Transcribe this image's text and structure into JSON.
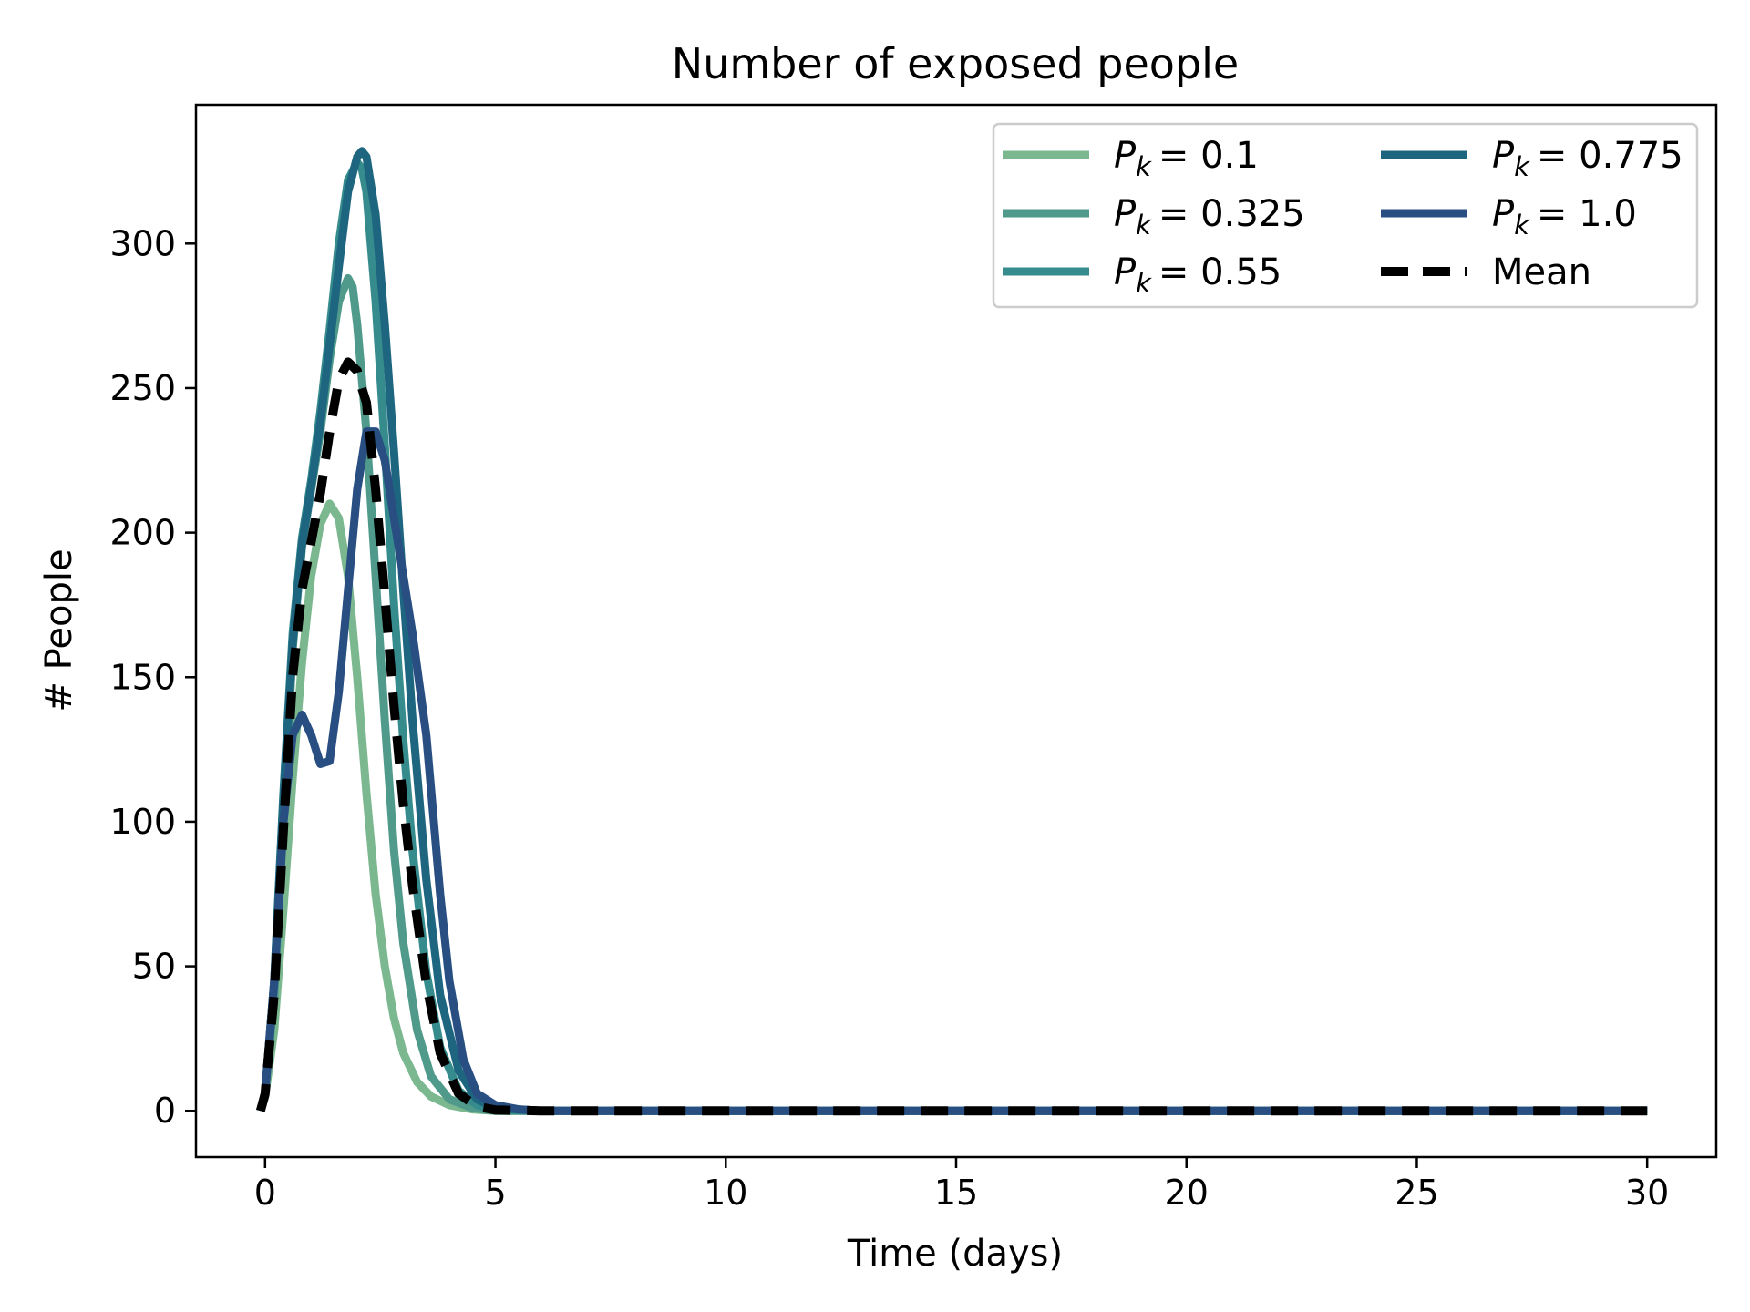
{
  "chart_data": {
    "type": "line",
    "title": "Number of exposed people",
    "xlabel": "Time (days)",
    "ylabel": "# People",
    "xlim": [
      -1.5,
      31.5
    ],
    "ylim": [
      -16,
      348
    ],
    "xticks": [
      0,
      5,
      10,
      15,
      20,
      25,
      30
    ],
    "yticks": [
      0,
      50,
      100,
      150,
      200,
      250,
      300
    ],
    "legend_position": "upper-right",
    "legend_columns": 2,
    "series": [
      {
        "name": "P_k = 0.1",
        "legend_var": "P",
        "legend_sub": "k",
        "legend_val": "= 0.1",
        "color": "#7bb88f",
        "dashed": false,
        "x": [
          -0.1,
          0,
          0.2,
          0.4,
          0.6,
          0.8,
          1.0,
          1.2,
          1.4,
          1.6,
          1.8,
          2.0,
          2.2,
          2.4,
          2.6,
          2.8,
          3.0,
          3.3,
          3.6,
          4.0,
          4.5,
          5.0,
          6.0,
          30
        ],
        "y": [
          0,
          5,
          28,
          70,
          115,
          155,
          185,
          203,
          210,
          205,
          185,
          150,
          110,
          75,
          50,
          32,
          20,
          10,
          5,
          2,
          0.5,
          0,
          0,
          0
        ]
      },
      {
        "name": "P_k = 0.325",
        "legend_var": "P",
        "legend_sub": "k",
        "legend_val": "= 0.325",
        "color": "#4f9a8a",
        "dashed": false,
        "x": [
          -0.1,
          0,
          0.2,
          0.4,
          0.6,
          0.8,
          1.0,
          1.2,
          1.4,
          1.6,
          1.8,
          1.9,
          2.0,
          2.2,
          2.4,
          2.6,
          2.8,
          3.0,
          3.3,
          3.6,
          4.0,
          4.5,
          5.0,
          6.0,
          30
        ],
        "y": [
          0,
          6,
          40,
          100,
          160,
          195,
          215,
          235,
          260,
          280,
          288,
          285,
          272,
          235,
          185,
          135,
          90,
          58,
          28,
          12,
          4,
          1,
          0,
          0,
          0
        ]
      },
      {
        "name": "P_k = 0.55",
        "legend_var": "P",
        "legend_sub": "k",
        "legend_val": "= 0.55",
        "color": "#368c8d",
        "dashed": false,
        "x": [
          -0.1,
          0,
          0.2,
          0.4,
          0.6,
          0.8,
          1.0,
          1.2,
          1.4,
          1.6,
          1.8,
          2.0,
          2.1,
          2.2,
          2.4,
          2.6,
          2.8,
          3.0,
          3.2,
          3.5,
          3.8,
          4.2,
          4.6,
          5.0,
          6.0,
          30
        ],
        "y": [
          0,
          6,
          45,
          110,
          165,
          198,
          218,
          242,
          270,
          300,
          322,
          328,
          326,
          318,
          280,
          230,
          175,
          128,
          90,
          48,
          22,
          7,
          2,
          0.5,
          0,
          0
        ]
      },
      {
        "name": "P_k = 0.775",
        "legend_var": "P",
        "legend_sub": "k",
        "legend_val": "= 0.775",
        "color": "#1e6580",
        "dashed": false,
        "x": [
          -0.1,
          0,
          0.2,
          0.4,
          0.6,
          0.8,
          1.0,
          1.2,
          1.4,
          1.6,
          1.8,
          2.0,
          2.1,
          2.2,
          2.4,
          2.6,
          2.8,
          3.0,
          3.2,
          3.5,
          3.8,
          4.2,
          4.6,
          5.0,
          6.0,
          30
        ],
        "y": [
          0,
          6,
          45,
          108,
          162,
          196,
          216,
          238,
          265,
          292,
          318,
          330,
          332,
          330,
          310,
          272,
          228,
          180,
          135,
          80,
          40,
          14,
          4,
          1,
          0,
          0
        ]
      },
      {
        "name": "P_k = 1.0",
        "legend_var": "P",
        "legend_sub": "k",
        "legend_val": "= 1.0",
        "color": "#284e82",
        "dashed": false,
        "x": [
          -0.1,
          0,
          0.2,
          0.4,
          0.6,
          0.8,
          1.0,
          1.2,
          1.4,
          1.6,
          1.8,
          2.0,
          2.2,
          2.4,
          2.6,
          2.8,
          3.0,
          3.2,
          3.5,
          3.8,
          4.0,
          4.3,
          4.6,
          5.0,
          5.5,
          6.0,
          30
        ],
        "y": [
          0,
          6,
          45,
          100,
          130,
          137,
          130,
          120,
          121,
          145,
          180,
          215,
          235,
          235,
          225,
          205,
          185,
          165,
          130,
          75,
          45,
          18,
          6,
          2,
          0.5,
          0,
          0
        ]
      },
      {
        "name": "Mean",
        "legend_var": "",
        "legend_sub": "",
        "legend_val": "Mean",
        "color": "#000000",
        "dashed": true,
        "x": [
          -0.1,
          0,
          0.2,
          0.4,
          0.6,
          0.8,
          1.0,
          1.2,
          1.4,
          1.6,
          1.8,
          2.0,
          2.1,
          2.2,
          2.4,
          2.6,
          2.8,
          3.0,
          3.2,
          3.5,
          3.8,
          4.2,
          4.6,
          5.0,
          6.0,
          30
        ],
        "y": [
          0,
          5.8,
          40.6,
          97.6,
          150.4,
          180.2,
          196.8,
          213.6,
          234.8,
          252.8,
          259,
          256,
          250,
          245,
          215,
          178,
          140,
          106,
          78,
          44,
          20,
          6,
          1.5,
          0.3,
          0,
          0
        ]
      }
    ]
  }
}
